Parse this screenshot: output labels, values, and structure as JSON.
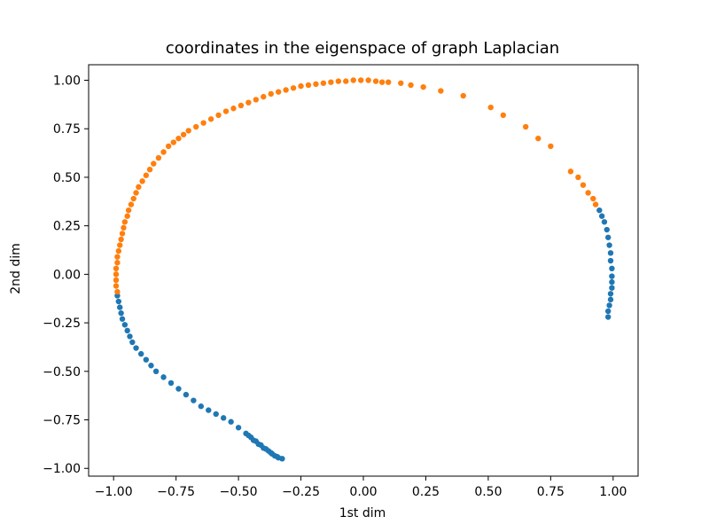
{
  "chart_data": {
    "type": "scatter",
    "title": "coordinates in the eigenspace of graph Laplacian",
    "xlabel": "1st dim",
    "ylabel": "2nd dim",
    "xlim": [
      -1.1,
      1.1
    ],
    "ylim": [
      -1.04,
      1.08
    ],
    "x_ticks": [
      {
        "value": -1.0,
        "label": "−1.00"
      },
      {
        "value": -0.75,
        "label": "−0.75"
      },
      {
        "value": -0.5,
        "label": "−0.50"
      },
      {
        "value": -0.25,
        "label": "−0.25"
      },
      {
        "value": 0.0,
        "label": "0.00"
      },
      {
        "value": 0.25,
        "label": "0.25"
      },
      {
        "value": 0.5,
        "label": "0.50"
      },
      {
        "value": 0.75,
        "label": "0.75"
      },
      {
        "value": 1.0,
        "label": "1.00"
      }
    ],
    "y_ticks": [
      {
        "value": 1.0,
        "label": "1.00"
      },
      {
        "value": 0.75,
        "label": "0.75"
      },
      {
        "value": 0.5,
        "label": "0.50"
      },
      {
        "value": 0.25,
        "label": "0.25"
      },
      {
        "value": 0.0,
        "label": "0.00"
      },
      {
        "value": -0.25,
        "label": "−0.25"
      },
      {
        "value": -0.5,
        "label": "−0.50"
      },
      {
        "value": -0.75,
        "label": "−0.75"
      },
      {
        "value": -1.0,
        "label": "−1.00"
      }
    ],
    "grid": false,
    "series": [
      {
        "color": "#1f77b4",
        "points": [
          [
            0.98,
            -0.22
          ],
          [
            0.98,
            -0.19
          ],
          [
            0.985,
            -0.16
          ],
          [
            0.99,
            -0.13
          ],
          [
            0.99,
            -0.1
          ],
          [
            0.995,
            -0.07
          ],
          [
            0.995,
            -0.04
          ],
          [
            0.995,
            -0.01
          ],
          [
            0.995,
            0.03
          ],
          [
            0.99,
            0.07
          ],
          [
            0.99,
            0.11
          ],
          [
            0.985,
            0.15
          ],
          [
            0.98,
            0.19
          ],
          [
            0.975,
            0.23
          ],
          [
            0.965,
            0.27
          ],
          [
            0.955,
            0.3
          ],
          [
            0.945,
            0.33
          ],
          [
            -0.985,
            -0.11
          ],
          [
            -0.98,
            -0.14
          ],
          [
            -0.975,
            -0.17
          ],
          [
            -0.97,
            -0.2
          ],
          [
            -0.965,
            -0.23
          ],
          [
            -0.955,
            -0.26
          ],
          [
            -0.945,
            -0.29
          ],
          [
            -0.935,
            -0.32
          ],
          [
            -0.925,
            -0.35
          ],
          [
            -0.91,
            -0.38
          ],
          [
            -0.89,
            -0.41
          ],
          [
            -0.87,
            -0.44
          ],
          [
            -0.85,
            -0.47
          ],
          [
            -0.83,
            -0.5
          ],
          [
            -0.8,
            -0.53
          ],
          [
            -0.77,
            -0.56
          ],
          [
            -0.74,
            -0.59
          ],
          [
            -0.71,
            -0.62
          ],
          [
            -0.68,
            -0.65
          ],
          [
            -0.65,
            -0.68
          ],
          [
            -0.62,
            -0.7
          ],
          [
            -0.59,
            -0.72
          ],
          [
            -0.56,
            -0.74
          ],
          [
            -0.53,
            -0.76
          ],
          [
            -0.5,
            -0.79
          ],
          [
            -0.47,
            -0.82
          ],
          [
            -0.45,
            -0.84
          ],
          [
            -0.43,
            -0.86
          ],
          [
            -0.41,
            -0.88
          ],
          [
            -0.39,
            -0.9
          ],
          [
            -0.37,
            -0.92
          ],
          [
            -0.355,
            -0.935
          ],
          [
            -0.34,
            -0.945
          ],
          [
            -0.325,
            -0.95
          ],
          [
            -0.46,
            -0.83
          ],
          [
            -0.44,
            -0.855
          ],
          [
            -0.42,
            -0.875
          ],
          [
            -0.4,
            -0.895
          ],
          [
            -0.38,
            -0.91
          ],
          [
            -0.365,
            -0.925
          ],
          [
            -0.345,
            -0.94
          ]
        ]
      },
      {
        "color": "#ff7f0e",
        "points": [
          [
            -0.985,
            -0.09
          ],
          [
            -0.99,
            -0.06
          ],
          [
            -0.99,
            -0.03
          ],
          [
            -0.99,
            0.0
          ],
          [
            -0.99,
            0.03
          ],
          [
            -0.985,
            0.06
          ],
          [
            -0.985,
            0.09
          ],
          [
            -0.98,
            0.12
          ],
          [
            -0.975,
            0.15
          ],
          [
            -0.97,
            0.18
          ],
          [
            -0.965,
            0.21
          ],
          [
            -0.96,
            0.24
          ],
          [
            -0.955,
            0.27
          ],
          [
            -0.945,
            0.3
          ],
          [
            -0.94,
            0.33
          ],
          [
            -0.93,
            0.36
          ],
          [
            -0.92,
            0.39
          ],
          [
            -0.91,
            0.42
          ],
          [
            -0.9,
            0.45
          ],
          [
            -0.885,
            0.48
          ],
          [
            -0.87,
            0.51
          ],
          [
            -0.855,
            0.54
          ],
          [
            -0.84,
            0.57
          ],
          [
            -0.82,
            0.6
          ],
          [
            -0.8,
            0.63
          ],
          [
            -0.78,
            0.66
          ],
          [
            -0.76,
            0.68
          ],
          [
            -0.74,
            0.7
          ],
          [
            -0.72,
            0.72
          ],
          [
            -0.7,
            0.74
          ],
          [
            -0.67,
            0.76
          ],
          [
            -0.64,
            0.78
          ],
          [
            -0.61,
            0.8
          ],
          [
            -0.58,
            0.82
          ],
          [
            -0.55,
            0.84
          ],
          [
            -0.52,
            0.855
          ],
          [
            -0.49,
            0.87
          ],
          [
            -0.46,
            0.885
          ],
          [
            -0.43,
            0.9
          ],
          [
            -0.4,
            0.915
          ],
          [
            -0.37,
            0.93
          ],
          [
            -0.34,
            0.94
          ],
          [
            -0.31,
            0.95
          ],
          [
            -0.28,
            0.96
          ],
          [
            -0.25,
            0.97
          ],
          [
            -0.22,
            0.975
          ],
          [
            -0.19,
            0.98
          ],
          [
            -0.16,
            0.985
          ],
          [
            -0.13,
            0.99
          ],
          [
            -0.1,
            0.995
          ],
          [
            -0.07,
            0.995
          ],
          [
            -0.04,
            1.0
          ],
          [
            -0.01,
            1.0
          ],
          [
            0.02,
            1.0
          ],
          [
            0.05,
            0.995
          ],
          [
            0.075,
            0.99
          ],
          [
            0.1,
            0.99
          ],
          [
            0.15,
            0.985
          ],
          [
            0.19,
            0.975
          ],
          [
            0.24,
            0.965
          ],
          [
            0.31,
            0.945
          ],
          [
            0.4,
            0.92
          ],
          [
            0.51,
            0.86
          ],
          [
            0.56,
            0.82
          ],
          [
            0.65,
            0.76
          ],
          [
            0.7,
            0.7
          ],
          [
            0.75,
            0.66
          ],
          [
            0.83,
            0.53
          ],
          [
            0.86,
            0.5
          ],
          [
            0.88,
            0.46
          ],
          [
            0.9,
            0.42
          ],
          [
            0.92,
            0.39
          ],
          [
            0.93,
            0.36
          ]
        ]
      }
    ]
  }
}
